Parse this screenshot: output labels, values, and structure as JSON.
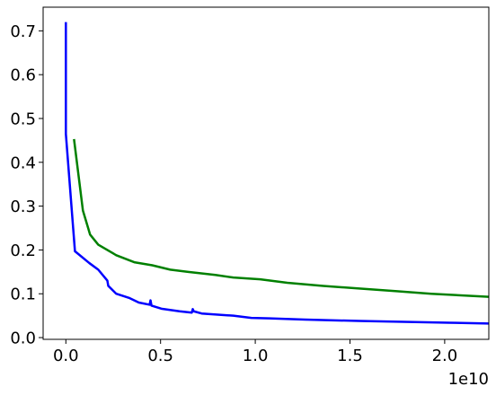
{
  "chart_data": {
    "type": "line",
    "x_offset_label": "1e10",
    "xlim": [
      -0.12,
      2.233
    ],
    "ylim": [
      -0.004,
      0.754
    ],
    "xticks": [
      {
        "value": 0,
        "label": "0.0"
      },
      {
        "value": 0.5,
        "label": "0.5"
      },
      {
        "value": 1,
        "label": "1.0"
      },
      {
        "value": 1.5,
        "label": "1.5"
      },
      {
        "value": 2,
        "label": "2.0"
      }
    ],
    "yticks": [
      {
        "value": 0,
        "label": "0.0"
      },
      {
        "value": 0.1,
        "label": "0.1"
      },
      {
        "value": 0.2,
        "label": "0.2"
      },
      {
        "value": 0.3,
        "label": "0.3"
      },
      {
        "value": 0.4,
        "label": "0.4"
      },
      {
        "value": 0.5,
        "label": "0.5"
      },
      {
        "value": 0.6,
        "label": "0.6"
      },
      {
        "value": 0.7,
        "label": "0.7"
      }
    ],
    "grid": false,
    "series": [
      {
        "color": "#0000ff",
        "x": [
          0,
          0,
          0.048,
          0.124,
          0.171,
          0.219,
          0.224,
          0.266,
          0.337,
          0.385,
          0.442,
          0.447,
          0.452,
          0.504,
          0.6,
          0.665,
          0.67,
          0.675,
          0.717,
          0.884,
          0.979,
          1.074,
          1.264,
          1.549,
          1.786,
          2.024,
          2.233
        ],
        "values": [
          0.72,
          0.465,
          0.197,
          0.17,
          0.155,
          0.13,
          0.118,
          0.1,
          0.09,
          0.08,
          0.075,
          0.085,
          0.073,
          0.066,
          0.06,
          0.057,
          0.065,
          0.06,
          0.055,
          0.05,
          0.045,
          0.044,
          0.041,
          0.038,
          0.036,
          0.034,
          0.032
        ]
      },
      {
        "color": "#008000",
        "x": [
          0.043,
          0.09,
          0.128,
          0.171,
          0.266,
          0.361,
          0.456,
          0.551,
          0.646,
          0.789,
          0.884,
          1.026,
          1.169,
          1.359,
          1.549,
          1.739,
          1.929,
          2.233
        ],
        "values": [
          0.453,
          0.29,
          0.235,
          0.212,
          0.188,
          0.172,
          0.165,
          0.155,
          0.15,
          0.143,
          0.137,
          0.133,
          0.125,
          0.118,
          0.112,
          0.106,
          0.1,
          0.093
        ]
      }
    ]
  }
}
